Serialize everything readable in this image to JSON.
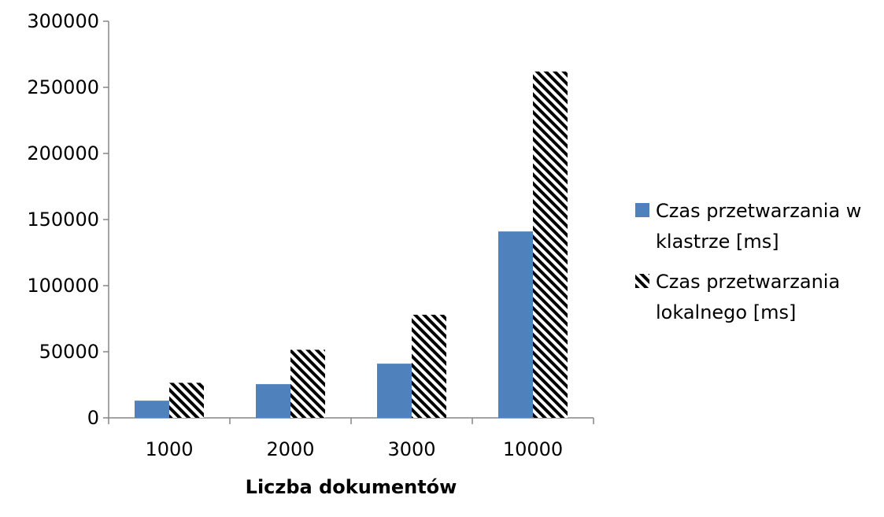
{
  "chart_data": {
    "type": "bar",
    "categories": [
      "1000",
      "2000",
      "3000",
      "10000"
    ],
    "series": [
      {
        "name": "Czas przetwarzania w klastrze [ms]",
        "legend_lines": [
          "Czas przetwarzania w",
          "klastrze [ms]"
        ],
        "values": [
          13000,
          25500,
          41000,
          141000
        ],
        "color": "#4F81BD",
        "fill": "solid"
      },
      {
        "name": "Czas przetwarzania lokalnego [ms]",
        "legend_lines": [
          "Czas przetwarzania",
          "lokalnego [ms]"
        ],
        "values": [
          26500,
          51500,
          78000,
          262000
        ],
        "color": "#000000",
        "fill": "diagonal-hatch"
      }
    ],
    "y_ticks": [
      "0",
      "50000",
      "100000",
      "150000",
      "200000",
      "250000",
      "300000"
    ],
    "ylim": [
      0,
      300000
    ],
    "xlabel": "Liczba dokumentów",
    "ylabel": "",
    "title": "",
    "grid": false,
    "legend_position": "right"
  }
}
